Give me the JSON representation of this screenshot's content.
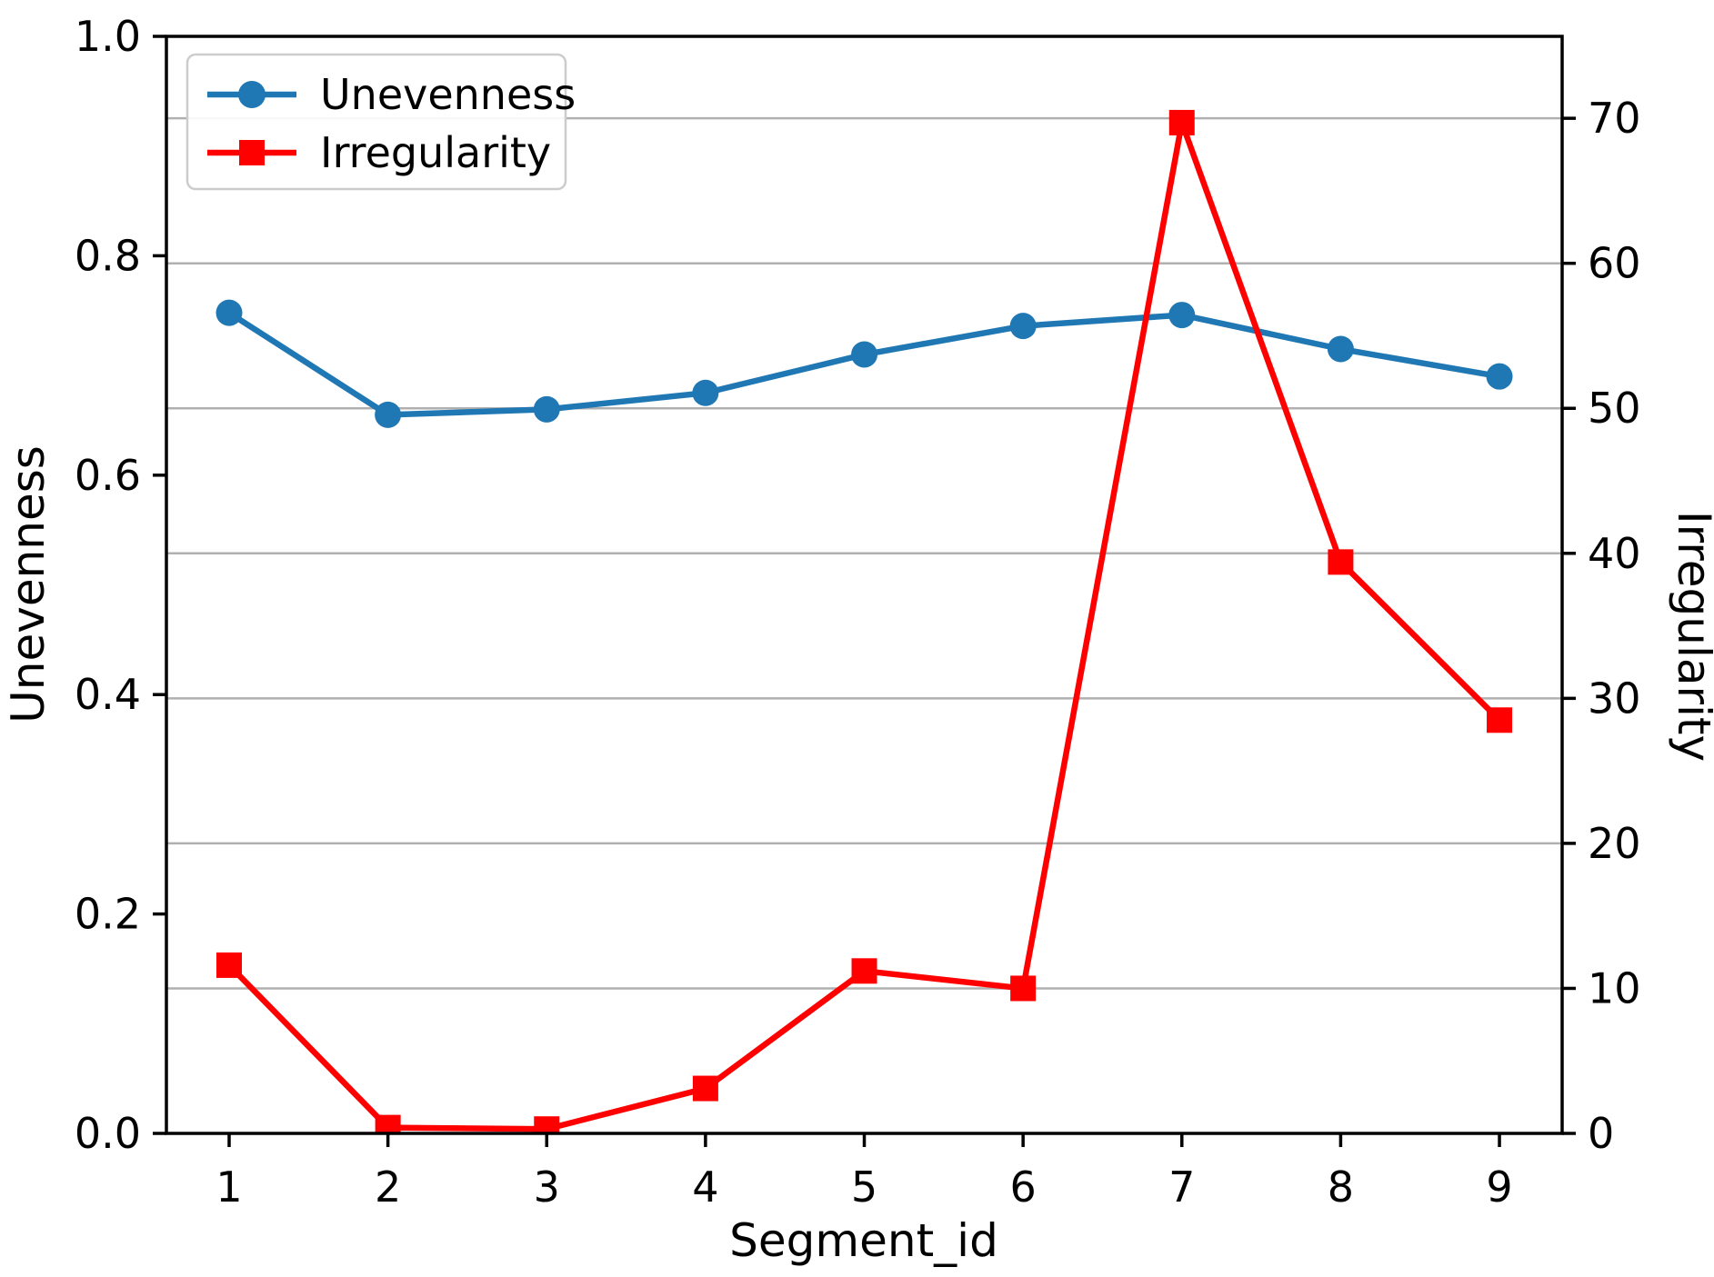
{
  "chart_data": {
    "type": "line",
    "title": "",
    "xlabel": "Segment_id",
    "x": [
      1,
      2,
      3,
      4,
      5,
      6,
      7,
      8,
      9
    ],
    "x_tick_labels": [
      "1",
      "2",
      "3",
      "4",
      "5",
      "6",
      "7",
      "8",
      "9"
    ],
    "series": [
      {
        "name": "Unevenness",
        "axis": "left",
        "marker": "circle",
        "color": "#1f77b4",
        "values": [
          0.748,
          0.655,
          0.66,
          0.675,
          0.71,
          0.736,
          0.746,
          0.715,
          0.69
        ]
      },
      {
        "name": "Irregularity",
        "axis": "right",
        "marker": "square",
        "color": "#ff0000",
        "values": [
          11.6,
          0.4,
          0.3,
          3.1,
          11.2,
          10.0,
          69.7,
          39.4,
          28.5
        ]
      }
    ],
    "left_axis": {
      "label": "Unevenness",
      "ylim": [
        0.0,
        1.0
      ],
      "ticks": [
        0.0,
        0.2,
        0.4,
        0.6,
        0.8,
        1.0
      ],
      "tick_labels": [
        "0.0",
        "0.2",
        "0.4",
        "0.6",
        "0.8",
        "1.0"
      ]
    },
    "right_axis": {
      "label": "Irregularity",
      "ylim": [
        0,
        75.65
      ],
      "ticks": [
        0,
        10,
        20,
        30,
        40,
        50,
        60,
        70
      ],
      "tick_labels": [
        "0",
        "10",
        "20",
        "30",
        "40",
        "50",
        "60",
        "70"
      ]
    },
    "legend": {
      "position": "upper-left",
      "entries": [
        "Unevenness",
        "Irregularity"
      ]
    },
    "grid": {
      "orientation": "horizontal",
      "aligned_to": "right-axis-ticks",
      "color": "#b0b0b0"
    },
    "colors": {
      "background": "#ffffff",
      "spine": "#000000",
      "legend_border": "#cccccc"
    }
  }
}
